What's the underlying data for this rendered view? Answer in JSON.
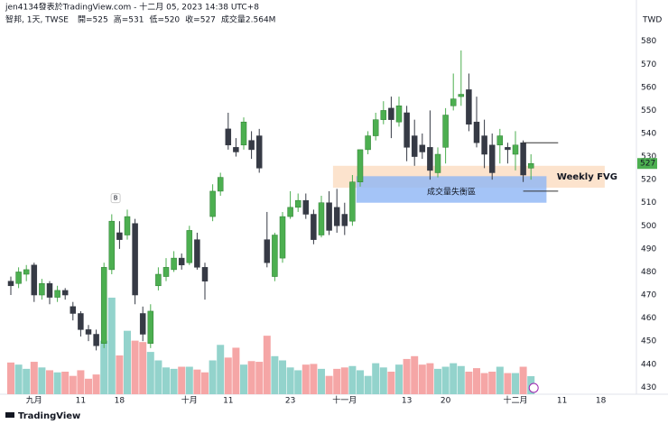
{
  "header": {
    "author_line": "jen4134發表於TradingView.com - 十二月 05, 2023 14:38 UTC+8",
    "symbol": "智邦, 1天, TWSE",
    "ohlc_text": [
      "開=525",
      "高=531",
      "低=520",
      "收=527"
    ],
    "volume_text": "成交量2.564M"
  },
  "footer": "TradingView",
  "chart_data": {
    "type": "candlestick",
    "currency": "TWD",
    "categories": [
      null,
      null,
      null,
      "九月",
      null,
      null,
      null,
      null,
      null,
      "11",
      null,
      null,
      null,
      null,
      "18",
      null,
      null,
      null,
      null,
      null,
      null,
      null,
      null,
      "十月",
      null,
      null,
      null,
      null,
      "11",
      null,
      null,
      null,
      null,
      null,
      null,
      null,
      "23",
      null,
      null,
      null,
      null,
      null,
      null,
      "十一月",
      null,
      null,
      null,
      null,
      null,
      null,
      null,
      "13",
      null,
      null,
      null,
      null,
      "20",
      null,
      null,
      null,
      null,
      null,
      null,
      null,
      null,
      "十二月",
      null,
      null,
      null,
      null,
      null,
      "11",
      null,
      null,
      null,
      null,
      "18",
      null,
      null,
      null,
      null
    ],
    "ohlc": [
      [
        476,
        478,
        470,
        474
      ],
      [
        475,
        482,
        473,
        480
      ],
      [
        479,
        483,
        476,
        481
      ],
      [
        483,
        484,
        467,
        470
      ],
      [
        470,
        477,
        468,
        475
      ],
      [
        475,
        476,
        466,
        469
      ],
      [
        469,
        474,
        467,
        472
      ],
      [
        472,
        473,
        468,
        470
      ],
      [
        465,
        467,
        459,
        462
      ],
      [
        462,
        463,
        452,
        455
      ],
      [
        455,
        457,
        450,
        453
      ],
      [
        453,
        455,
        446,
        448
      ],
      [
        449,
        484,
        447,
        482
      ],
      [
        481,
        505,
        479,
        502
      ],
      [
        497,
        502,
        490,
        494
      ],
      [
        496,
        507,
        494,
        504
      ],
      [
        501,
        503,
        466,
        470
      ],
      [
        462,
        465,
        450,
        453
      ],
      [
        449,
        466,
        447,
        463
      ],
      [
        474,
        482,
        472,
        479
      ],
      [
        478,
        486,
        476,
        482
      ],
      [
        481,
        489,
        480,
        486
      ],
      [
        486,
        488,
        481,
        483
      ],
      [
        484,
        500,
        483,
        498
      ],
      [
        494,
        497,
        481,
        482
      ],
      [
        482,
        484,
        468,
        476
      ],
      [
        504,
        518,
        502,
        515
      ],
      [
        515,
        523,
        513,
        521
      ],
      [
        542,
        549,
        533,
        535
      ],
      [
        534,
        538,
        530,
        532
      ],
      [
        535,
        547,
        533,
        545
      ],
      [
        537,
        541,
        529,
        533
      ],
      [
        539,
        542,
        523,
        525
      ],
      [
        494,
        506,
        482,
        484
      ],
      [
        478,
        497,
        476,
        496
      ],
      [
        486,
        506,
        484,
        504
      ],
      [
        504,
        515,
        503,
        508
      ],
      [
        508,
        514,
        506,
        511
      ],
      [
        511,
        514,
        503,
        505
      ],
      [
        505,
        507,
        492,
        494
      ],
      [
        496,
        513,
        495,
        510
      ],
      [
        510,
        515,
        496,
        498
      ],
      [
        508,
        516,
        497,
        500
      ],
      [
        505,
        510,
        496,
        500
      ],
      [
        502,
        522,
        500,
        519
      ],
      [
        519,
        533,
        517,
        533
      ],
      [
        533,
        541,
        531,
        539
      ],
      [
        539,
        549,
        537,
        546
      ],
      [
        546,
        554,
        544,
        550
      ],
      [
        551,
        556,
        538,
        546
      ],
      [
        545,
        556,
        543,
        552
      ],
      [
        549,
        552,
        528,
        534
      ],
      [
        539,
        546,
        526,
        530
      ],
      [
        535,
        540,
        529,
        532
      ],
      [
        534,
        550,
        520,
        524
      ],
      [
        523,
        534,
        521,
        531
      ],
      [
        534,
        551,
        527,
        548
      ],
      [
        552,
        566,
        550,
        555
      ],
      [
        556,
        576,
        552,
        557
      ],
      [
        559,
        566,
        541,
        544
      ],
      [
        545,
        556,
        534,
        536
      ],
      [
        539,
        546,
        525,
        531
      ],
      [
        535,
        540,
        520,
        523
      ],
      [
        535,
        542,
        527,
        539
      ],
      [
        534,
        536,
        527,
        533
      ],
      [
        531,
        541,
        524,
        535
      ],
      [
        536,
        537,
        519,
        522
      ],
      [
        525,
        531,
        520,
        527
      ],
      null,
      null,
      null,
      null,
      null,
      null,
      null,
      null,
      null,
      null,
      null,
      null,
      null
    ],
    "volumes": [
      4.5,
      4.2,
      3.6,
      4.6,
      3.8,
      3.4,
      3.1,
      3.2,
      2.6,
      3.4,
      2.2,
      2.8,
      7.6,
      13.7,
      5.5,
      9.0,
      7.6,
      7.4,
      6.0,
      4.8,
      3.8,
      3.6,
      3.9,
      3.9,
      3.5,
      3.1,
      4.8,
      7.0,
      5.2,
      6.6,
      4.2,
      4.7,
      4.6,
      8.3,
      5.4,
      4.8,
      3.8,
      3.4,
      4.2,
      4.3,
      3.6,
      2.6,
      3.6,
      3.8,
      4.0,
      3.4,
      2.6,
      4.4,
      3.8,
      3.2,
      4.2,
      5.0,
      5.4,
      4.2,
      4.4,
      3.6,
      3.9,
      4.4,
      4.0,
      3.2,
      3.7,
      3.0,
      3.2,
      3.9,
      3.0,
      3.0,
      3.9,
      2.564,
      null,
      null,
      null,
      null,
      null,
      null,
      null,
      null,
      null,
      null,
      null,
      null,
      null
    ],
    "up_color": "#4caf50",
    "down_color": "#363a45",
    "volume_up_color": "#93d3cc",
    "volume_down_color": "#f5a6a6",
    "ylim": [
      427,
      592
    ],
    "yticks": [
      430,
      440,
      450,
      460,
      470,
      480,
      490,
      500,
      510,
      520,
      530,
      540,
      550,
      560,
      570,
      580
    ],
    "y2lim": [
      0,
      54
    ],
    "grid": false,
    "zones": [
      {
        "label": "Weekly FVG",
        "top": 526,
        "bottom": 516.5,
        "start": 41.5,
        "end": 76.5,
        "color": "#fbdcc0"
      },
      {
        "label": "成交量失衡區",
        "top": 521.5,
        "bottom": 510,
        "start": 44.5,
        "end": 69,
        "color": "#8db5f5"
      }
    ],
    "levels": [
      {
        "price": 536,
        "start": 66,
        "end": 70.5
      },
      {
        "price": 515,
        "start": 66,
        "end": 70.5
      }
    ],
    "marker": {
      "label": "B",
      "index": 13.5,
      "price": 512
    }
  }
}
